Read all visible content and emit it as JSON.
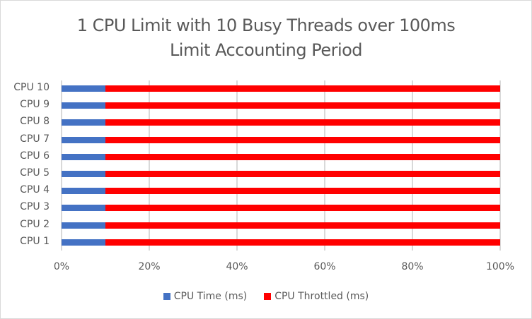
{
  "chart_data": {
    "type": "bar",
    "orientation": "horizontal",
    "stacked": "percent",
    "title": "1 CPU Limit with 10 Busy Threads over 100ms Limit Accounting Period",
    "title_lines": [
      "1 CPU Limit with 10 Busy Threads over 100ms",
      "Limit Accounting Period"
    ],
    "categories": [
      "CPU 10",
      "CPU 9",
      "CPU 8",
      "CPU 7",
      "CPU 6",
      "CPU 5",
      "CPU 4",
      "CPU 3",
      "CPU 2",
      "CPU 1"
    ],
    "series": [
      {
        "name": "CPU Time (ms)",
        "color": "#4472c4",
        "values": [
          10,
          10,
          10,
          10,
          10,
          10,
          10,
          10,
          10,
          10
        ]
      },
      {
        "name": "CPU Throttled (ms)",
        "color": "#ff0000",
        "values": [
          90,
          90,
          90,
          90,
          90,
          90,
          90,
          90,
          90,
          90
        ]
      }
    ],
    "x_ticks": [
      "0%",
      "20%",
      "40%",
      "60%",
      "80%",
      "100%"
    ],
    "xlim": [
      0,
      100
    ],
    "xlabel": "",
    "ylabel": "",
    "grid": true,
    "legend_position": "bottom"
  }
}
